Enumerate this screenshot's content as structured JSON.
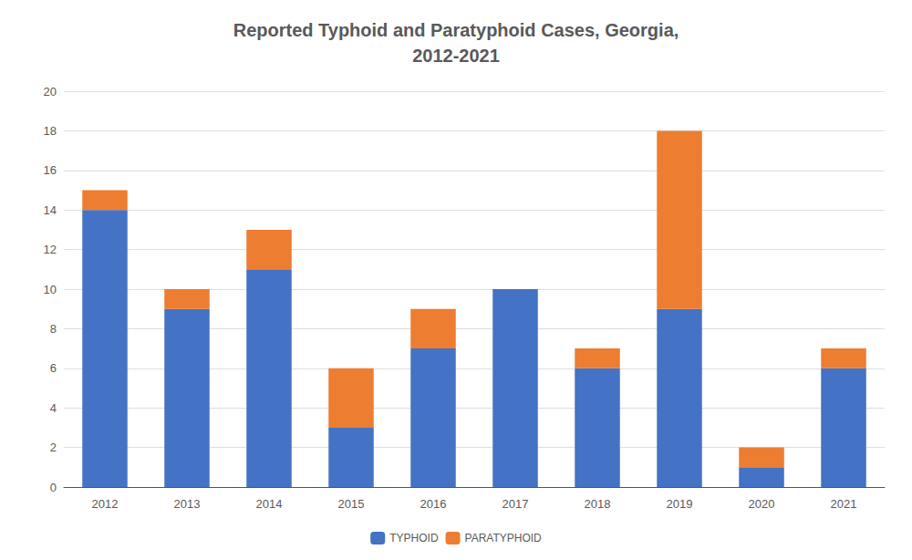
{
  "chart_data": {
    "type": "bar",
    "title": "Reported Typhoid and Paratyphoid Cases, Georgia,\n2012-2021",
    "categories": [
      "2012",
      "2013",
      "2014",
      "2015",
      "2016",
      "2017",
      "2018",
      "2019",
      "2020",
      "2021"
    ],
    "series": [
      {
        "name": "TYPHOID",
        "color": "#4472C4",
        "values": [
          14,
          9,
          11,
          3,
          7,
          10,
          6,
          9,
          1,
          6
        ]
      },
      {
        "name": "PARATYPHOID",
        "color": "#ED7D31",
        "values": [
          1,
          1,
          2,
          3,
          2,
          0,
          1,
          9,
          1,
          1
        ]
      }
    ],
    "stacked": true,
    "ylim": [
      0,
      20
    ],
    "yticks": [
      0,
      2,
      4,
      6,
      8,
      10,
      12,
      14,
      16,
      18,
      20
    ],
    "grid": true,
    "legend": "bottom"
  }
}
